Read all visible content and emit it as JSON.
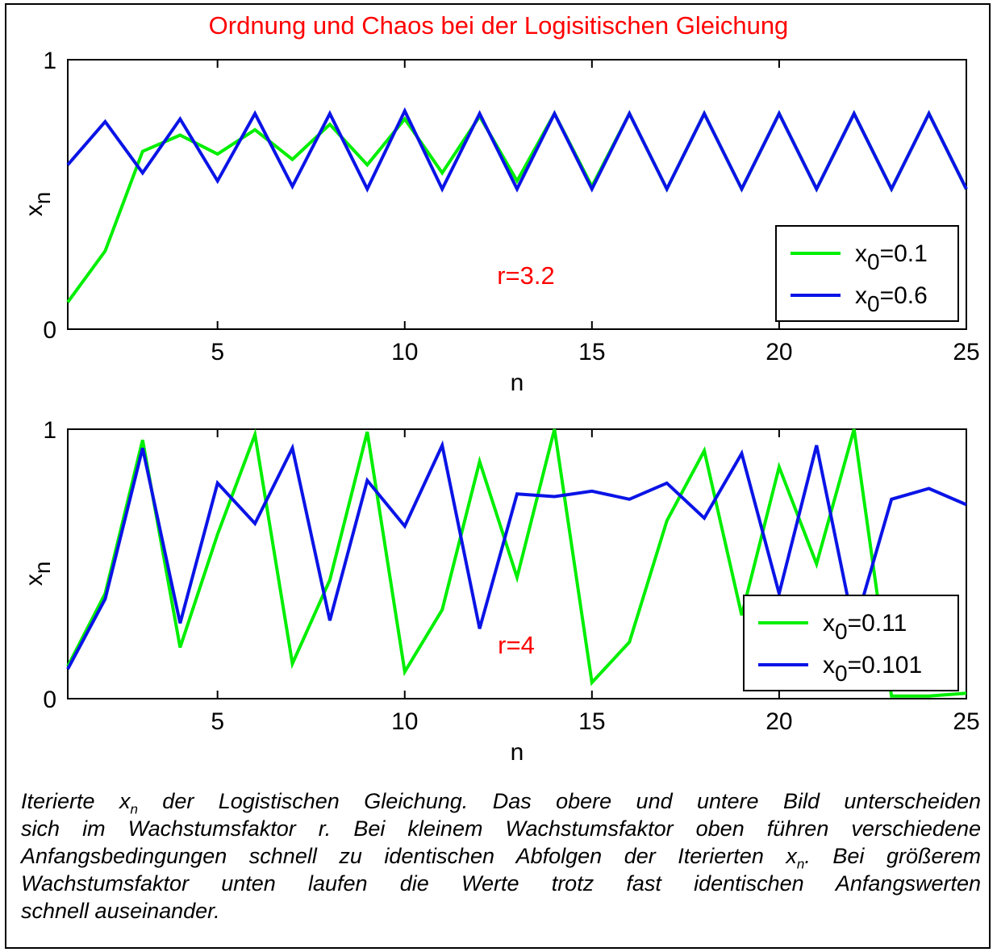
{
  "title": "Ordnung und Chaos bei der Logisitischen Gleichung",
  "colors": {
    "green": "#00ee00",
    "blue": "#0a14e6",
    "red": "#ff0000",
    "axis": "#000000"
  },
  "chart_data": [
    {
      "type": "line",
      "xlabel": "n",
      "ylabel_base": "x",
      "ylabel_sub": "n",
      "xlim": [
        1,
        25
      ],
      "ylim": [
        0,
        1
      ],
      "xticks": [
        "5",
        "10",
        "15",
        "20",
        "25"
      ],
      "xtick_values": [
        5,
        10,
        15,
        20,
        25
      ],
      "yticks": [
        "0",
        "1"
      ],
      "ytick_values": [
        0,
        1
      ],
      "annotation": "r=3.2",
      "legend_position": "bottom-right",
      "x": [
        1,
        2,
        3,
        4,
        5,
        6,
        7,
        8,
        9,
        10,
        11,
        12,
        13,
        14,
        15,
        16,
        17,
        18,
        19,
        20,
        21,
        22,
        23,
        24,
        25
      ],
      "series": [
        {
          "name_base": "x",
          "name_sub": "0",
          "name_value": "=0.1",
          "color": "#00ee00",
          "values": [
            0.1,
            0.29,
            0.66,
            0.72,
            0.65,
            0.74,
            0.63,
            0.76,
            0.61,
            0.78,
            0.58,
            0.79,
            0.55,
            0.8,
            0.53,
            0.8,
            0.52,
            0.8,
            0.52,
            0.8,
            0.52,
            0.8,
            0.52,
            0.8,
            0.52
          ]
        },
        {
          "name_base": "x",
          "name_sub": "0",
          "name_value": "=0.6",
          "color": "#0a14e6",
          "values": [
            0.61,
            0.77,
            0.58,
            0.78,
            0.55,
            0.8,
            0.53,
            0.8,
            0.52,
            0.81,
            0.52,
            0.8,
            0.52,
            0.8,
            0.52,
            0.8,
            0.52,
            0.8,
            0.52,
            0.8,
            0.52,
            0.8,
            0.52,
            0.8,
            0.52
          ]
        }
      ]
    },
    {
      "type": "line",
      "xlabel": "n",
      "ylabel_base": "x",
      "ylabel_sub": "n",
      "xlim": [
        1,
        25
      ],
      "ylim": [
        0,
        1
      ],
      "xticks": [
        "5",
        "10",
        "15",
        "20",
        "25"
      ],
      "xtick_values": [
        5,
        10,
        15,
        20,
        25
      ],
      "yticks": [
        "0",
        "1"
      ],
      "ytick_values": [
        0,
        1
      ],
      "annotation": "r=4",
      "legend_position": "bottom-right",
      "x": [
        1,
        2,
        3,
        4,
        5,
        6,
        7,
        8,
        9,
        10,
        11,
        12,
        13,
        14,
        15,
        16,
        17,
        18,
        19,
        20,
        21,
        22,
        23,
        24,
        25
      ],
      "series": [
        {
          "name_base": "x",
          "name_sub": "0",
          "name_value": "=0.11",
          "color": "#00ee00",
          "values": [
            0.12,
            0.39,
            0.96,
            0.19,
            0.61,
            0.98,
            0.13,
            0.44,
            0.99,
            0.1,
            0.33,
            0.88,
            0.45,
            1.0,
            0.06,
            0.21,
            0.66,
            0.92,
            0.31,
            0.86,
            0.5,
            1.0,
            0.01,
            0.01,
            0.02
          ]
        },
        {
          "name_base": "x",
          "name_sub": "0",
          "name_value": "=0.101",
          "color": "#0a14e6",
          "values": [
            0.11,
            0.37,
            0.93,
            0.28,
            0.8,
            0.65,
            0.93,
            0.29,
            0.81,
            0.64,
            0.94,
            0.26,
            0.76,
            0.75,
            0.77,
            0.74,
            0.8,
            0.67,
            0.91,
            0.39,
            0.94,
            0.26,
            0.74,
            0.78,
            0.72
          ]
        }
      ]
    }
  ],
  "caption": {
    "lines": [
      [
        "Iterierte ",
        "x",
        "n",
        " der Logistischen Gleichung. Das obere und untere Bild unterscheiden"
      ],
      [
        "sich im Wachstumsfaktor r. Bei kleinem Wachstumsfaktor oben führen verschiedene"
      ],
      [
        "Anfangsbedingungen schnell zu identischen Abfolgen der Iterierten ",
        "x",
        "n",
        ". Bei größerem"
      ],
      [
        "Wachstumsfaktor unten laufen die Werte trotz fast identischen Anfangswerten"
      ],
      [
        "schnell auseinander."
      ]
    ]
  }
}
